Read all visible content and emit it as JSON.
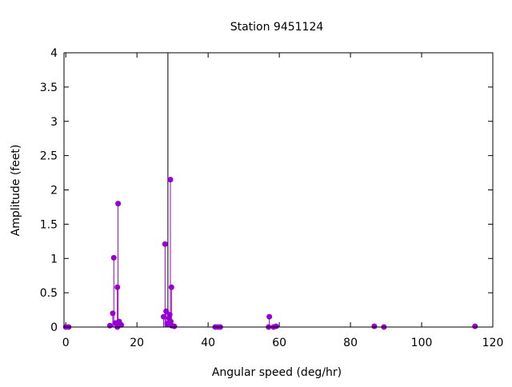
{
  "chart_data": {
    "type": "impulse",
    "title": "Station 9451124",
    "xlabel": "Angular speed (deg/hr)",
    "ylabel": "Amplitude (feet)",
    "xlim": [
      -0.5,
      120
    ],
    "ylim": [
      0,
      4
    ],
    "xticks": [
      "0",
      "20",
      "40",
      "60",
      "80",
      "100",
      "120"
    ],
    "yticks": [
      "0",
      "0.5",
      "1",
      "1.5",
      "2",
      "2.5",
      "3",
      "3.5",
      "4"
    ],
    "grid": false,
    "color": "#9400d3",
    "series": [
      {
        "x": [
          0,
          0.8,
          12.4,
          13.2,
          13.5,
          14.0,
          14.5,
          14.7,
          14.5,
          15.0,
          15.2,
          15.6,
          27.5,
          27.9,
          28.2,
          28.5,
          29.0,
          29.4,
          29.7,
          29.2,
          29.5,
          29.8,
          30.5,
          42.0,
          42.7,
          43.4,
          57.0,
          57.2,
          58.4,
          59.1,
          86.7,
          89.4,
          115.0
        ],
        "y": [
          0.0,
          0.0,
          0.02,
          0.2,
          1.01,
          0.06,
          0.58,
          1.8,
          0.0,
          0.08,
          0.05,
          0.03,
          0.15,
          1.21,
          0.23,
          0.05,
          0.13,
          2.15,
          0.58,
          0.18,
          0.08,
          0.02,
          0.01,
          0.0,
          0.0,
          0.0,
          0.0,
          0.15,
          0.0,
          0.01,
          0.01,
          0.0,
          0.01
        ]
      }
    ],
    "offscale_impulse": {
      "x": 28.7,
      "color": "#000000"
    }
  }
}
